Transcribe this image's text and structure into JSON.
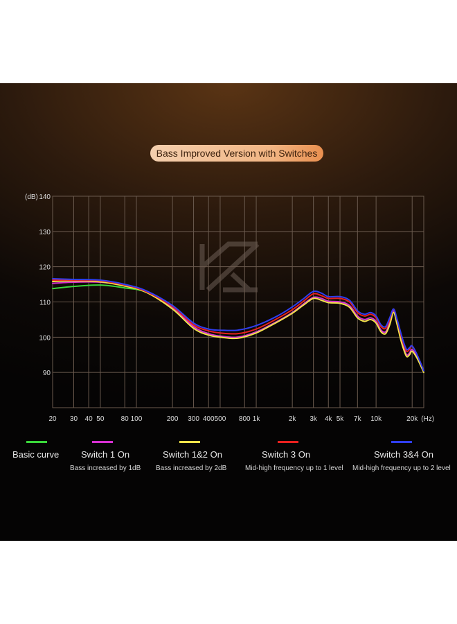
{
  "title": "Bass Improved Version with Switches",
  "colors": {
    "basic": "#3ad63a",
    "switch1": "#d62fd0",
    "switch12": "#f2e24a",
    "switch3": "#e8201e",
    "switch34": "#2f3ef0"
  },
  "logo": "KZ",
  "chart_data": {
    "type": "line",
    "ylabel": "(dB)",
    "xlabel": "(Hz)",
    "x_scale": "log",
    "ylim": [
      80,
      140
    ],
    "xlim": [
      20,
      25000
    ],
    "y_ticks": [
      140,
      130,
      120,
      110,
      100,
      90
    ],
    "x_ticks": [
      {
        "v": 20,
        "label": "20"
      },
      {
        "v": 30,
        "label": "30"
      },
      {
        "v": 40,
        "label": "40"
      },
      {
        "v": 50,
        "label": "50"
      },
      {
        "v": 80,
        "label": "80"
      },
      {
        "v": 100,
        "label": "100"
      },
      {
        "v": 200,
        "label": "200"
      },
      {
        "v": 300,
        "label": "300"
      },
      {
        "v": 400,
        "label": "400"
      },
      {
        "v": 500,
        "label": "500"
      },
      {
        "v": 800,
        "label": "800"
      },
      {
        "v": 1000,
        "label": "1k"
      },
      {
        "v": 2000,
        "label": "2k"
      },
      {
        "v": 3000,
        "label": "3k"
      },
      {
        "v": 4000,
        "label": "4k"
      },
      {
        "v": 5000,
        "label": "5k"
      },
      {
        "v": 7000,
        "label": "7k"
      },
      {
        "v": 10000,
        "label": "10k"
      },
      {
        "v": 20000,
        "label": "20k"
      }
    ],
    "x": [
      20,
      30,
      50,
      80,
      120,
      200,
      300,
      400,
      500,
      700,
      1000,
      1500,
      2000,
      2500,
      3000,
      3500,
      4000,
      5000,
      6000,
      7000,
      8000,
      9000,
      10000,
      11000,
      12000,
      13000,
      14000,
      15000,
      16000,
      17000,
      18000,
      19000,
      20000,
      22000,
      25000
    ],
    "series": [
      {
        "name": "Basic curve",
        "color_key": "basic",
        "values": [
          113.8,
          114.4,
          114.8,
          114.0,
          112.8,
          108.5,
          103.0,
          101.0,
          100.3,
          100.0,
          101.5,
          104.5,
          107.0,
          109.5,
          111.3,
          111.0,
          110.2,
          110.0,
          109.0,
          106.0,
          105.0,
          105.5,
          104.5,
          102.0,
          101.5,
          104.0,
          107.5,
          104.0,
          100.0,
          97.0,
          95.0,
          95.5,
          96.5,
          94.5,
          90.5
        ]
      },
      {
        "name": "Switch 1 On",
        "color_key": "switch1",
        "values": [
          115.3,
          115.6,
          115.6,
          114.7,
          113.0,
          108.5,
          103.0,
          101.0,
          100.3,
          100.0,
          101.5,
          104.5,
          107.0,
          109.5,
          111.3,
          111.0,
          110.2,
          110.0,
          109.0,
          106.0,
          105.0,
          105.5,
          104.5,
          102.0,
          101.5,
          104.0,
          107.5,
          104.0,
          100.0,
          97.0,
          95.0,
          95.5,
          96.5,
          94.5,
          90.5
        ]
      },
      {
        "name": "Switch 1&2 On",
        "color_key": "switch12",
        "values": [
          115.8,
          116.0,
          115.7,
          114.5,
          112.8,
          108.0,
          102.5,
          100.6,
          100.0,
          99.7,
          101.2,
          104.3,
          106.8,
          109.2,
          111.0,
          110.5,
          109.8,
          109.6,
          108.5,
          105.5,
          104.5,
          105.0,
          104.0,
          101.5,
          101.0,
          103.5,
          107.0,
          103.5,
          99.5,
          96.5,
          94.5,
          95.0,
          96.0,
          94.0,
          90.0
        ]
      },
      {
        "name": "Switch 3 On",
        "color_key": "switch3",
        "values": [
          116.2,
          116.2,
          116.0,
          114.8,
          113.0,
          108.7,
          103.5,
          101.8,
          101.2,
          101.0,
          102.3,
          105.3,
          107.8,
          110.3,
          112.3,
          111.8,
          111.0,
          111.0,
          110.0,
          107.0,
          106.0,
          106.5,
          105.5,
          103.0,
          102.5,
          105.0,
          108.0,
          104.8,
          101.0,
          98.0,
          96.0,
          96.5,
          97.5,
          95.0,
          90.5
        ]
      },
      {
        "name": "Switch 3&4 On",
        "color_key": "switch34",
        "values": [
          116.6,
          116.4,
          116.2,
          115.0,
          113.2,
          109.0,
          104.0,
          102.3,
          102.0,
          102.0,
          103.3,
          106.0,
          108.6,
          111.0,
          113.0,
          112.5,
          111.5,
          111.5,
          110.5,
          107.5,
          106.5,
          107.0,
          106.0,
          103.5,
          103.0,
          105.5,
          108.0,
          105.0,
          101.5,
          98.5,
          96.5,
          97.0,
          97.5,
          95.0,
          90.5
        ]
      }
    ]
  },
  "legend": [
    {
      "name": "Basic curve",
      "desc": "",
      "color_key": "basic"
    },
    {
      "name": "Switch 1 On",
      "desc": "Bass increased by 1dB",
      "color_key": "switch1"
    },
    {
      "name": "Switch 1&2 On",
      "desc": "Bass increased by 2dB",
      "color_key": "switch12"
    },
    {
      "name": "Switch 3 On",
      "desc": "Mid-high frequency up to 1 level",
      "color_key": "switch3"
    },
    {
      "name": "Switch 3&4 On",
      "desc": "Mid-high frequency up to 2 level",
      "color_key": "switch34"
    }
  ]
}
